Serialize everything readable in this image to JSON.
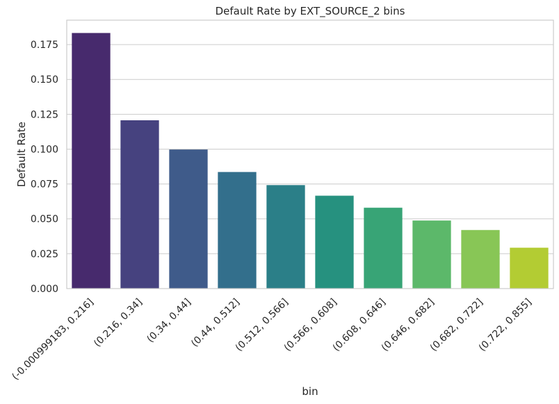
{
  "chart_data": {
    "type": "bar",
    "title": "Default Rate by EXT_SOURCE_2 bins",
    "xlabel": "bin",
    "ylabel": "Default Rate",
    "categories": [
      "(-0.000999183, 0.216]",
      "(0.216, 0.34]",
      "(0.34, 0.44]",
      "(0.44, 0.512]",
      "(0.512, 0.566]",
      "(0.566, 0.608]",
      "(0.608, 0.646]",
      "(0.646, 0.682]",
      "(0.682, 0.722]",
      "(0.722, 0.855]"
    ],
    "values": [
      0.1833,
      0.1207,
      0.0997,
      0.0836,
      0.0742,
      0.0666,
      0.058,
      0.0488,
      0.042,
      0.0293
    ],
    "colors": [
      "#472a6d",
      "#46427f",
      "#3f5b8a",
      "#336f8c",
      "#2b7f88",
      "#26917f",
      "#38a476",
      "#5cb86a",
      "#88c656",
      "#b3cc33"
    ],
    "yticks": [
      "0.000",
      "0.025",
      "0.050",
      "0.075",
      "0.100",
      "0.125",
      "0.150",
      "0.175"
    ],
    "ylim": [
      0,
      0.1925
    ],
    "grid": true
  }
}
